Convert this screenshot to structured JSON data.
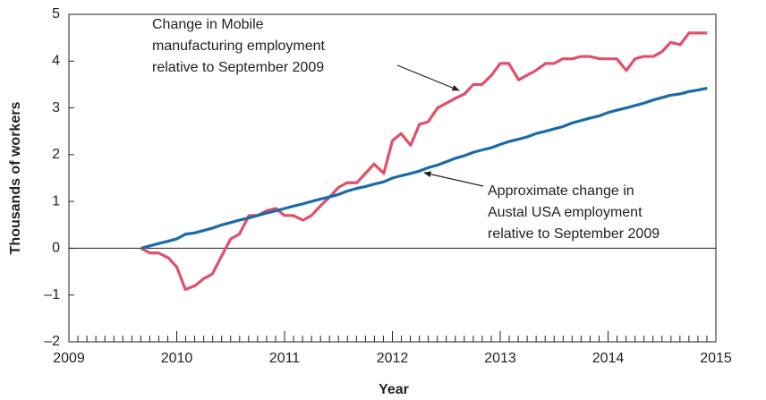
{
  "chart_data": {
    "type": "line",
    "xlabel": "Year",
    "ylabel": "Thousands of workers",
    "xlim": [
      2009,
      2015
    ],
    "xticks": [
      2009,
      2010,
      2011,
      2012,
      2013,
      2014,
      2015
    ],
    "ylim": [
      -2,
      5
    ],
    "yticks": [
      {
        "value": -2,
        "label": "–2"
      },
      {
        "value": -1,
        "label": "–1"
      },
      0,
      1,
      2,
      3,
      4,
      5
    ],
    "zero_line": true,
    "annotations": [
      [
        "Change in Mobile",
        "manufacturing employment",
        "relative to September 2009"
      ],
      [
        "Approximate change in",
        "Austal USA employment",
        "relative to September 2009"
      ]
    ],
    "x": [
      2009.67,
      2009.75,
      2009.83,
      2009.92,
      2010.0,
      2010.08,
      2010.17,
      2010.25,
      2010.33,
      2010.42,
      2010.5,
      2010.58,
      2010.67,
      2010.75,
      2010.83,
      2010.92,
      2011.0,
      2011.08,
      2011.17,
      2011.25,
      2011.33,
      2011.42,
      2011.5,
      2011.58,
      2011.67,
      2011.75,
      2011.83,
      2011.92,
      2012.0,
      2012.08,
      2012.17,
      2012.25,
      2012.33,
      2012.42,
      2012.5,
      2012.58,
      2012.67,
      2012.75,
      2012.83,
      2012.92,
      2013.0,
      2013.08,
      2013.17,
      2013.25,
      2013.33,
      2013.42,
      2013.5,
      2013.58,
      2013.67,
      2013.75,
      2013.83,
      2013.92,
      2014.0,
      2014.08,
      2014.17,
      2014.25,
      2014.33,
      2014.42,
      2014.5,
      2014.58,
      2014.67,
      2014.75,
      2014.83,
      2014.92
    ],
    "series": [
      {
        "color": "#e0506a",
        "values": [
          0,
          -0.1,
          -0.1,
          -0.2,
          -0.4,
          -0.88,
          -0.8,
          -0.65,
          -0.55,
          -0.15,
          0.2,
          0.3,
          0.7,
          0.7,
          0.8,
          0.85,
          0.7,
          0.7,
          0.6,
          0.7,
          0.9,
          1.1,
          1.3,
          1.4,
          1.4,
          1.6,
          1.8,
          1.6,
          2.3,
          2.45,
          2.2,
          2.65,
          2.7,
          3.0,
          3.1,
          3.2,
          3.3,
          3.5,
          3.5,
          3.7,
          3.95,
          3.95,
          3.6,
          3.7,
          3.8,
          3.95,
          3.95,
          4.05,
          4.05,
          4.1,
          4.1,
          4.05,
          4.05,
          4.05,
          3.8,
          4.05,
          4.1,
          4.1,
          4.2,
          4.4,
          4.35,
          4.6,
          4.6,
          4.6
        ]
      },
      {
        "color": "#1a6aab",
        "values": [
          0,
          0.05,
          0.1,
          0.15,
          0.2,
          0.3,
          0.33,
          0.38,
          0.43,
          0.5,
          0.55,
          0.6,
          0.65,
          0.7,
          0.75,
          0.8,
          0.85,
          0.9,
          0.95,
          1.0,
          1.05,
          1.1,
          1.15,
          1.22,
          1.28,
          1.32,
          1.37,
          1.42,
          1.5,
          1.55,
          1.6,
          1.65,
          1.72,
          1.78,
          1.85,
          1.92,
          1.98,
          2.05,
          2.1,
          2.15,
          2.22,
          2.28,
          2.33,
          2.38,
          2.45,
          2.5,
          2.55,
          2.6,
          2.68,
          2.73,
          2.78,
          2.83,
          2.9,
          2.95,
          3.0,
          3.05,
          3.1,
          3.17,
          3.22,
          3.27,
          3.3,
          3.35,
          3.38,
          3.42
        ]
      }
    ]
  }
}
